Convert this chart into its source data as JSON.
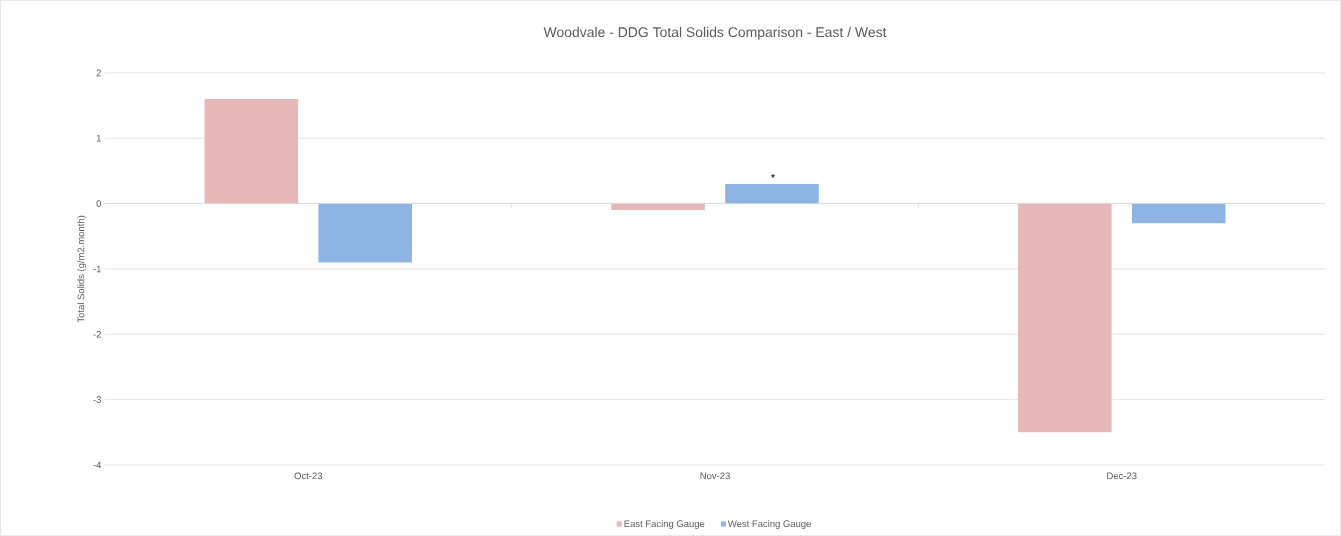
{
  "chart_data": {
    "type": "bar",
    "title": "Woodvale - DDG Total Solids Comparison - East / West",
    "ylabel": "Total Solids (g/m2.month)",
    "categories": [
      "Oct-23",
      "Nov-23",
      "Dec-23"
    ],
    "series": [
      {
        "name": "East Facing Gauge",
        "color": "#e6b8b7",
        "values": [
          1.6,
          -0.1,
          -3.5
        ]
      },
      {
        "name": "West Facing Gauge",
        "color": "#8db4e2",
        "values": [
          -0.9,
          0.3,
          -0.3
        ]
      }
    ],
    "ylim": [
      -4,
      2
    ],
    "yticks": [
      -4,
      -3,
      -2,
      -1,
      0,
      1,
      2
    ],
    "grid": "y",
    "legend": "bottom",
    "annotations": [
      "*"
    ]
  }
}
